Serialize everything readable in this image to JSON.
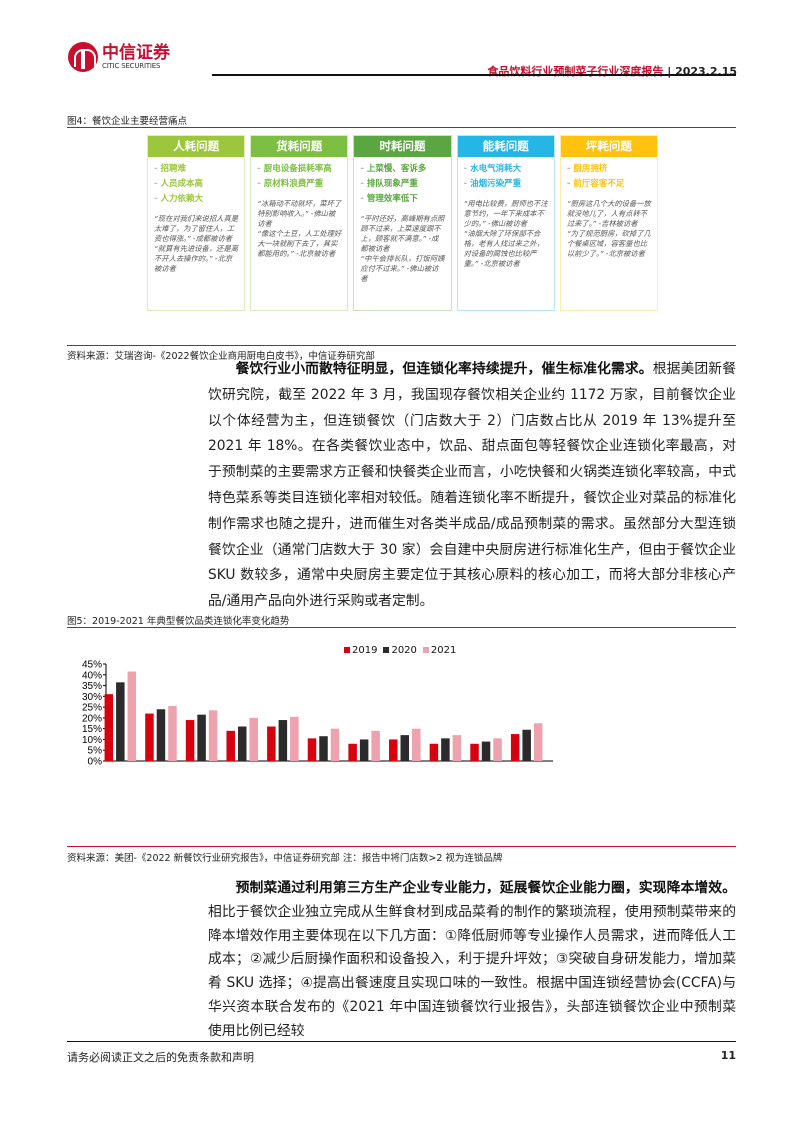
{
  "header": {
    "logo_cn": "中信证券",
    "logo_en": "CITIC SECURITIES",
    "report_title": "食品饮料行业预制菜子行业深度报告",
    "date": "2023.2.15"
  },
  "figure4": {
    "title": "图4：餐饮企业主要经营痛点",
    "source": "资料来源：艾瑞咨询-《2022餐饮企业商用厨电白皮书》，中信证券研究部",
    "columns": [
      {
        "header": "人耗问题",
        "color": "#9cc63b",
        "bullets": [
          "招聘难",
          "人员成本高",
          "人力依赖大"
        ],
        "quotes": [
          "“现在对我们来说招人真是太难了，为了留住人，工资也得涨。” -成都被访者",
          "“就算有先进设备，还是离不开人去操作的。” -北京被访者"
        ]
      },
      {
        "header": "货耗问题",
        "color": "#7dbf43",
        "bullets": [
          "厨电设备损耗率高",
          "原材料浪费严重"
        ],
        "quotes": [
          "“冰箱动不动就坏，菜坏了特别影响收入。” -佛山被访者",
          "“像这个土豆，人工处理好大一块就削下去了，其实都能用的。” -北京被访者"
        ]
      },
      {
        "header": "时耗问题",
        "color": "#5aa640",
        "bullets": [
          "上菜慢、客诉多",
          "排队现象严重",
          "管理效率低下"
        ],
        "quotes": [
          "“平时还好，高峰期有点照顾不过来，上菜速度跟不上，顾客就不满意。” -成都被访者",
          "“中午会排长队，打饭阿姨应付不过来。” -佛山被访者"
        ]
      },
      {
        "header": "能耗问题",
        "color": "#26b6e6",
        "bullets": [
          "水电气消耗大",
          "油烟污染严重"
        ],
        "quotes": [
          "“用电比较费，厨师也不注意节约，一年下来成本不少的。” -佛山被访者",
          "“油烟大除了环保部不合格，老有人找过来之外，对设备的腐蚀也比较严重。” -北京被访者"
        ]
      },
      {
        "header": "坪耗问题",
        "color": "#ffc20e",
        "bullets": [
          "厨房拥挤",
          "前厅容客不足"
        ],
        "quotes": [
          "“厨房这几个大的设备一放就没地儿了，人有点转不过来了。” -吉林被访者",
          "“为了规范厨房，砍掉了几个餐桌区域，容客量也比以前少了。” -北京被访者"
        ]
      }
    ]
  },
  "para1": {
    "bold": "餐饮行业小而散特征明显，但连锁化率持续提升，催生标准化需求。",
    "text": "根据美团新餐饮研究院，截至 2022 年 3 月，我国现存餐饮相关企业约 1172 万家，目前餐饮企业以个体经营为主，但连锁餐饮（门店数大于 2）门店数占比从 2019 年 13%提升至 2021 年 18%。在各类餐饮业态中，饮品、甜点面包等轻餐饮企业连锁化率最高，对于预制菜的主要需求方正餐和快餐类企业而言，小吃快餐和火锅类连锁化率较高，中式特色菜系等类目连锁化率相对较低。随着连锁化率不断提升，餐饮企业对菜品的标准化制作需求也随之提升，进而催生对各类半成品/成品预制菜的需求。虽然部分大型连锁餐饮企业（通常门店数大于 30 家）会自建中央厨房进行标准化生产，但由于餐饮企业 SKU 数较多，通常中央厨房主要定位于其核心原料的核心加工，而将大部分非核心产品/通用产品向外进行采购或者定制。"
  },
  "figure5": {
    "title": "图5：2019-2021 年典型餐饮品类连锁化率变化趋势",
    "source": "资料来源：美团-《2022 新餐饮行业研究报告》，中信证券研究部 注：报告中将门店数>2 视为连锁品牌"
  },
  "chart_data": {
    "type": "bar",
    "categories": [
      "",
      "",
      "",
      "",
      "",
      "",
      "",
      "",
      "",
      "",
      ""
    ],
    "ylim": [
      0,
      45
    ],
    "yticks": [
      "0%",
      "5%",
      "10%",
      "15%",
      "20%",
      "25%",
      "30%",
      "35%",
      "40%",
      "45%"
    ],
    "legend": "top-center",
    "grid": false,
    "series": [
      {
        "name": "2019",
        "color": "#d7000f",
        "values": [
          31,
          22,
          19,
          14,
          16,
          10.5,
          8,
          10,
          8,
          8,
          12.5
        ]
      },
      {
        "name": "2020",
        "color": "#2b2b2b",
        "values": [
          36.5,
          24,
          21.5,
          16,
          19,
          11.5,
          10,
          12,
          10.5,
          9,
          14.5
        ]
      },
      {
        "name": "2021",
        "color": "#eda2ad",
        "values": [
          41.5,
          25.5,
          23.5,
          20,
          20.5,
          15,
          14,
          15,
          12,
          10.5,
          17.5
        ]
      }
    ]
  },
  "para2": {
    "bold": "预制菜通过利用第三方生产企业专业能力，延展餐饮企业能力圈，实现降本增效。",
    "text": "相比于餐饮企业独立完成从生鲜食材到成品菜肴的制作的繁琐流程，使用预制菜带来的降本增效作用主要体现在以下几方面：①降低厨师等专业操作人员需求，进而降低人工成本；②减少后厨操作面积和设备投入，利于提升坪效；③突破自身研发能力，增加菜肴 SKU 选择；④提高出餐速度且实现口味的一致性。根据中国连锁经营协会(CCFA)与华兴资本联合发布的《2021 年中国连锁餐饮行业报告》，头部连锁餐饮企业中预制菜使用比例已经较"
  },
  "footer": {
    "disclaimer": "请务必阅读正文之后的免责条款和声明",
    "page": "11"
  }
}
